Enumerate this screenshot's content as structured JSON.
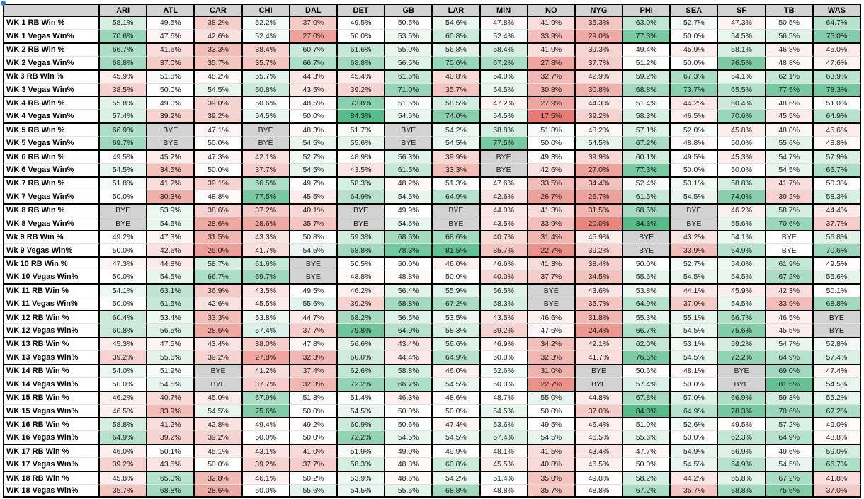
{
  "table": {
    "corner_label": "",
    "bye_text": "BYE",
    "columns": [
      "ARI",
      "ATL",
      "CAR",
      "CHI",
      "DAL",
      "DET",
      "GB",
      "LAR",
      "MIN",
      "NO",
      "NYG",
      "PHI",
      "SEA",
      "SF",
      "TB",
      "WAS"
    ],
    "rows": [
      {
        "label": "WK 1 RB Win %",
        "values": [
          "58.1%",
          "49.5%",
          "38.2%",
          "52.2%",
          "37.0%",
          "49.5%",
          "50.5%",
          "54.6%",
          "47.8%",
          "41.9%",
          "35.3%",
          "63.0%",
          "52.7%",
          "47.3%",
          "50.5%",
          "64.7%"
        ]
      },
      {
        "label": "WK 1 Vegas Win%",
        "values": [
          "70.6%",
          "47.6%",
          "42.6%",
          "52.4%",
          "27.0%",
          "50.0%",
          "53.5%",
          "60.8%",
          "52.4%",
          "33.9%",
          "29.0%",
          "77.3%",
          "50.0%",
          "54.5%",
          "56.5%",
          "75.0%"
        ]
      },
      {
        "label": "WK 2 RB Win %",
        "values": [
          "66.7%",
          "41.6%",
          "33.3%",
          "38.4%",
          "60.7%",
          "61.6%",
          "55.0%",
          "56.8%",
          "58.4%",
          "41.9%",
          "39.3%",
          "49.4%",
          "45.9%",
          "58.1%",
          "46.8%",
          "45.0%"
        ]
      },
      {
        "label": "WK 2 Vegas Win%",
        "values": [
          "68.8%",
          "37.0%",
          "35.7%",
          "35.7%",
          "66.7%",
          "68.8%",
          "56.5%",
          "70.6%",
          "67.2%",
          "27.8%",
          "37.7%",
          "51.2%",
          "50.0%",
          "76.5%",
          "48.8%",
          "47.6%"
        ]
      },
      {
        "label": "Wk 3 RB Win %",
        "values": [
          "45.9%",
          "51.8%",
          "48.2%",
          "55.7%",
          "44.3%",
          "45.4%",
          "61.5%",
          "40.8%",
          "54.0%",
          "32.7%",
          "42.9%",
          "59.2%",
          "67.3%",
          "54.1%",
          "62.1%",
          "63.9%"
        ]
      },
      {
        "label": "WK 3 Vegas Win%",
        "values": [
          "38.5%",
          "50.0%",
          "54.5%",
          "60.8%",
          "43.5%",
          "39.2%",
          "71.0%",
          "35.7%",
          "54.5%",
          "30.8%",
          "30.8%",
          "68.8%",
          "73.7%",
          "65.5%",
          "77.5%",
          "78.3%"
        ]
      },
      {
        "label": "WK 4 RB Win %",
        "values": [
          "55.8%",
          "49.0%",
          "39.0%",
          "50.6%",
          "48.5%",
          "73.8%",
          "51.5%",
          "58.5%",
          "47.2%",
          "27.9%",
          "44.3%",
          "51.4%",
          "44.2%",
          "60.4%",
          "48.6%",
          "51.0%"
        ]
      },
      {
        "label": "WK 4 Vegas Win%",
        "values": [
          "57.4%",
          "39.2%",
          "39.2%",
          "54.5%",
          "50.0%",
          "84.3%",
          "54.5%",
          "74.0%",
          "54.5%",
          "17.5%",
          "39.2%",
          "58.3%",
          "46.5%",
          "70.6%",
          "45.5%",
          "64.9%"
        ]
      },
      {
        "label": "WK 5 RB Win %",
        "values": [
          "66.9%",
          "BYE",
          "47.1%",
          "BYE",
          "48.3%",
          "51.7%",
          "BYE",
          "54.2%",
          "58.8%",
          "51.8%",
          "48.2%",
          "57.1%",
          "52.0%",
          "45.8%",
          "48.0%",
          "45.6%"
        ]
      },
      {
        "label": "WK 5 Vegas Win%",
        "values": [
          "69.7%",
          "BYE",
          "50.0%",
          "BYE",
          "54.5%",
          "55.6%",
          "BYE",
          "54.5%",
          "77.5%",
          "50.0%",
          "54.5%",
          "67.2%",
          "48.8%",
          "50.0%",
          "55.6%",
          "48.8%"
        ]
      },
      {
        "label": "WK 6 RB Win %",
        "values": [
          "49.5%",
          "45.2%",
          "47.3%",
          "42.1%",
          "52.7%",
          "48.9%",
          "56.3%",
          "39.9%",
          "BYE",
          "49.3%",
          "39.9%",
          "60.1%",
          "49.5%",
          "45.3%",
          "54.7%",
          "57.9%"
        ]
      },
      {
        "label": "WK 6 Vegas Win%",
        "values": [
          "54.5%",
          "34.5%",
          "50.0%",
          "37.7%",
          "54.5%",
          "43.5%",
          "61.5%",
          "33.3%",
          "BYE",
          "42.6%",
          "27.0%",
          "77.3%",
          "50.0%",
          "50.0%",
          "54.5%",
          "66.7%"
        ]
      },
      {
        "label": "WK 7 RB Win %",
        "values": [
          "51.8%",
          "41.2%",
          "39.1%",
          "66.5%",
          "49.7%",
          "58.3%",
          "48.2%",
          "51.3%",
          "47.6%",
          "33.5%",
          "34.4%",
          "52.4%",
          "53.1%",
          "58.8%",
          "41.7%",
          "50.3%"
        ]
      },
      {
        "label": "WK 7 Vegas Win%",
        "values": [
          "50.0%",
          "30.3%",
          "48.8%",
          "77.5%",
          "45.5%",
          "64.9%",
          "54.5%",
          "64.9%",
          "42.6%",
          "26.7%",
          "26.7%",
          "61.5%",
          "54.5%",
          "74.0%",
          "39.2%",
          "58.3%"
        ]
      },
      {
        "label": "WK 8 RB Win %",
        "values": [
          "BYE",
          "53.9%",
          "38.6%",
          "37.2%",
          "40.1%",
          "BYE",
          "49.9%",
          "BYE",
          "44.0%",
          "41.3%",
          "31.5%",
          "68.5%",
          "BYE",
          "46.2%",
          "58.7%",
          "44.4%"
        ]
      },
      {
        "label": "WK 8 Vegas Win%",
        "values": [
          "BYE",
          "54.5%",
          "28.6%",
          "28.6%",
          "35.7%",
          "BYE",
          "54.5%",
          "BYE",
          "43.5%",
          "33.9%",
          "20.0%",
          "84.3%",
          "BYE",
          "55.6%",
          "70.6%",
          "37.7%"
        ]
      },
      {
        "label": "Wk 9 RB Win %",
        "values": [
          "49.2%",
          "47.3%",
          "31.5%",
          "43.3%",
          "50.8%",
          "59.3%",
          "68.5%",
          "68.6%",
          "40.7%",
          "31.4%",
          "45.9%",
          "BYE",
          "43.2%",
          "54.1%",
          "BYE",
          "56.8%"
        ]
      },
      {
        "label": "Wk 9 Vegas Win%",
        "values": [
          "50.0%",
          "42.6%",
          "26.0%",
          "41.7%",
          "54.5%",
          "68.8%",
          "78.3%",
          "81.5%",
          "35.7%",
          "22.7%",
          "39.2%",
          "BYE",
          "33.9%",
          "64.9%",
          "BYE",
          "70.6%"
        ]
      },
      {
        "label": "Wk 10 RB Win %",
        "values": [
          "47.3%",
          "44.8%",
          "58.7%",
          "61.6%",
          "BYE",
          "50.5%",
          "50.0%",
          "46.0%",
          "46.6%",
          "41.3%",
          "38.4%",
          "50.0%",
          "52.7%",
          "54.0%",
          "61.9%",
          "49.5%"
        ]
      },
      {
        "label": "WK 10 Vegas Win%",
        "values": [
          "50.0%",
          "54.5%",
          "66.7%",
          "69.7%",
          "BYE",
          "48.8%",
          "48.8%",
          "50.0%",
          "40.0%",
          "37.7%",
          "34.5%",
          "55.6%",
          "54.5%",
          "54.5%",
          "67.2%",
          "55.6%"
        ]
      },
      {
        "label": "WK 11 RB Win %",
        "values": [
          "54.1%",
          "63.1%",
          "36.9%",
          "43.5%",
          "49.5%",
          "46.2%",
          "56.4%",
          "55.9%",
          "56.5%",
          "BYE",
          "43.6%",
          "53.8%",
          "44.1%",
          "45.9%",
          "42.3%",
          "50.1%"
        ]
      },
      {
        "label": "WK 11 Vegas Win%",
        "values": [
          "50.0%",
          "61.5%",
          "42.6%",
          "45.5%",
          "55.6%",
          "39.2%",
          "68.8%",
          "67.2%",
          "58.3%",
          "BYE",
          "35.7%",
          "64.9%",
          "37.0%",
          "54.5%",
          "33.9%",
          "68.8%"
        ]
      },
      {
        "label": "WK 12 RB Win %",
        "values": [
          "60.4%",
          "53.4%",
          "33.3%",
          "53.8%",
          "44.7%",
          "68.2%",
          "56.5%",
          "53.5%",
          "43.5%",
          "46.6%",
          "31.8%",
          "55.3%",
          "55.1%",
          "66.7%",
          "46.5%",
          "BYE"
        ]
      },
      {
        "label": "WK 12 Vegas Win%",
        "values": [
          "60.8%",
          "56.5%",
          "28.6%",
          "57.4%",
          "37.7%",
          "79.8%",
          "64.9%",
          "58.3%",
          "39.2%",
          "47.6%",
          "24.4%",
          "66.7%",
          "54.5%",
          "75.6%",
          "45.5%",
          "BYE"
        ]
      },
      {
        "label": "WK 13 RB Win %",
        "values": [
          "45.3%",
          "47.5%",
          "43.4%",
          "38.0%",
          "47.8%",
          "56.6%",
          "43.4%",
          "56.6%",
          "46.9%",
          "34.2%",
          "42.1%",
          "62.0%",
          "53.1%",
          "59.2%",
          "54.7%",
          "52.8%"
        ]
      },
      {
        "label": "WK 13 Vegas Win%",
        "values": [
          "39.2%",
          "55.6%",
          "39.2%",
          "27.8%",
          "32.3%",
          "60.0%",
          "44.4%",
          "64.9%",
          "50.0%",
          "32.3%",
          "41.7%",
          "76.5%",
          "54.5%",
          "72.2%",
          "64.9%",
          "57.4%"
        ]
      },
      {
        "label": "WK 14 RB Win %",
        "values": [
          "54.0%",
          "51.9%",
          "BYE",
          "41.2%",
          "37.4%",
          "62.6%",
          "58.8%",
          "46.0%",
          "52.6%",
          "31.0%",
          "BYE",
          "50.6%",
          "48.1%",
          "BYE",
          "69.0%",
          "47.4%"
        ]
      },
      {
        "label": "WK 14 Vegas Win%",
        "values": [
          "50.0%",
          "54.5%",
          "BYE",
          "37.7%",
          "32.3%",
          "72.2%",
          "66.7%",
          "54.5%",
          "50.0%",
          "22.7%",
          "BYE",
          "57.4%",
          "50.0%",
          "BYE",
          "81.5%",
          "54.5%"
        ]
      },
      {
        "label": "WK 15 RB Win %",
        "values": [
          "46.2%",
          "40.7%",
          "45.0%",
          "67.9%",
          "51.3%",
          "51.4%",
          "46.3%",
          "48.6%",
          "48.7%",
          "55.0%",
          "44.8%",
          "67.8%",
          "57.0%",
          "66.9%",
          "59.3%",
          "55.2%"
        ]
      },
      {
        "label": "WK 15 Vegas Win%",
        "values": [
          "46.5%",
          "33.9%",
          "54.5%",
          "75.6%",
          "50.0%",
          "54.5%",
          "50.0%",
          "50.0%",
          "54.5%",
          "50.0%",
          "37.0%",
          "84.3%",
          "64.9%",
          "78.3%",
          "70.6%",
          "67.2%"
        ]
      },
      {
        "label": "WK 16 RB Win %",
        "values": [
          "58.8%",
          "41.2%",
          "42.8%",
          "49.4%",
          "49.2%",
          "60.9%",
          "50.6%",
          "47.4%",
          "53.6%",
          "49.5%",
          "46.4%",
          "51.0%",
          "52.6%",
          "49.5%",
          "57.2%",
          "49.0%"
        ]
      },
      {
        "label": "WK 16 Vegas Win%",
        "values": [
          "64.9%",
          "39.2%",
          "39.2%",
          "50.0%",
          "50.0%",
          "72.2%",
          "54.5%",
          "54.5%",
          "57.4%",
          "54.5%",
          "46.5%",
          "55.6%",
          "50.0%",
          "62.3%",
          "64.9%",
          "48.8%"
        ]
      },
      {
        "label": "WK 17 RB Win %",
        "values": [
          "46.0%",
          "50.1%",
          "45.1%",
          "43.1%",
          "41.0%",
          "51.9%",
          "49.0%",
          "49.9%",
          "48.1%",
          "41.5%",
          "43.4%",
          "47.7%",
          "54.9%",
          "56.9%",
          "49.6%",
          "59.0%"
        ]
      },
      {
        "label": "WK 17 Vegas Win%",
        "values": [
          "39.2%",
          "43.5%",
          "50.0%",
          "39.2%",
          "37.7%",
          "58.3%",
          "48.8%",
          "60.8%",
          "45.5%",
          "40.8%",
          "46.5%",
          "50.0%",
          "54.5%",
          "64.9%",
          "54.5%",
          "66.7%"
        ]
      },
      {
        "label": "WK 18 RB Win %",
        "values": [
          "45.8%",
          "65.0%",
          "32.8%",
          "46.1%",
          "50.2%",
          "53.9%",
          "48.6%",
          "54.2%",
          "51.4%",
          "35.0%",
          "49.8%",
          "58.2%",
          "44.2%",
          "55.8%",
          "67.2%",
          "41.8%"
        ]
      },
      {
        "label": "WK 18 Vegas Win%",
        "values": [
          "35.7%",
          "68.8%",
          "28.6%",
          "50.0%",
          "55.6%",
          "54.5%",
          "55.6%",
          "68.8%",
          "48.8%",
          "35.7%",
          "48.8%",
          "67.2%",
          "35.7%",
          "68.8%",
          "75.6%",
          "37.0%"
        ]
      }
    ]
  },
  "format": {
    "color_scale": {
      "min_value": 17.5,
      "mid_value": 50,
      "max_value": 84.3,
      "min_color": "#e67c73",
      "mid_color": "#ffffff",
      "max_color": "#57bb8a"
    },
    "bye_bg": "#d2d2d2",
    "header_bg": "#d2d2d2",
    "label_bg": "#ffffff",
    "indicator_color": "#3d7ad1",
    "white_bye_cells": [
      {
        "row": 16,
        "col": 14
      },
      {
        "row": 17,
        "col": 14
      }
    ]
  }
}
